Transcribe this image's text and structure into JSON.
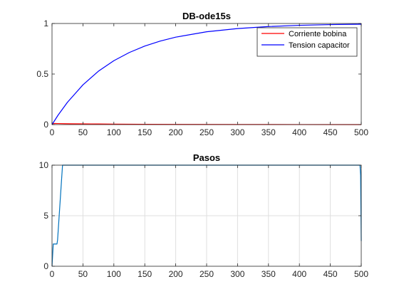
{
  "chart_data": [
    {
      "type": "line",
      "title": "DB-ode15s",
      "xlabel": "",
      "ylabel": "",
      "xlim": [
        0,
        500
      ],
      "ylim": [
        0,
        1
      ],
      "xticks": [
        "0",
        "50",
        "100",
        "150",
        "200",
        "250",
        "300",
        "350",
        "400",
        "450",
        "500"
      ],
      "yticks": [
        "0",
        "0.5",
        "1"
      ],
      "grid": false,
      "legend_position": "top-right",
      "series": [
        {
          "name": "Corriente bobina",
          "color": "#ff0000",
          "x": [
            0,
            2,
            5,
            10,
            20,
            30,
            50,
            75,
            100,
            150,
            200,
            300,
            400,
            500
          ],
          "y": [
            0,
            0.01,
            0.011,
            0.01,
            0.009,
            0.008,
            0.007,
            0.006,
            0.005,
            0.003,
            0.002,
            0.001,
            0.0005,
            0.0002
          ]
        },
        {
          "name": "Tension capacitor",
          "color": "#0000ff",
          "x": [
            0,
            10,
            25,
            50,
            75,
            100,
            125,
            150,
            175,
            200,
            250,
            300,
            350,
            400,
            450,
            500
          ],
          "y": [
            0,
            0.095,
            0.221,
            0.393,
            0.528,
            0.632,
            0.713,
            0.777,
            0.826,
            0.865,
            0.918,
            0.95,
            0.97,
            0.982,
            0.989,
            0.993
          ]
        }
      ]
    },
    {
      "type": "line",
      "title": "Pasos",
      "xlabel": "",
      "ylabel": "",
      "xlim": [
        0,
        500
      ],
      "ylim": [
        0,
        10
      ],
      "xticks": [
        "0",
        "50",
        "100",
        "150",
        "200",
        "250",
        "300",
        "350",
        "400",
        "450",
        "500"
      ],
      "yticks": [
        "0",
        "5",
        "10"
      ],
      "grid": true,
      "series": [
        {
          "color": "#0072bd",
          "x": [
            0,
            2,
            3,
            8,
            9,
            17,
            18,
            497,
            498,
            499,
            500
          ],
          "y": [
            0,
            2.2,
            2.2,
            2.2,
            2.6,
            10,
            10,
            10,
            10,
            9,
            2.5
          ]
        }
      ]
    }
  ]
}
